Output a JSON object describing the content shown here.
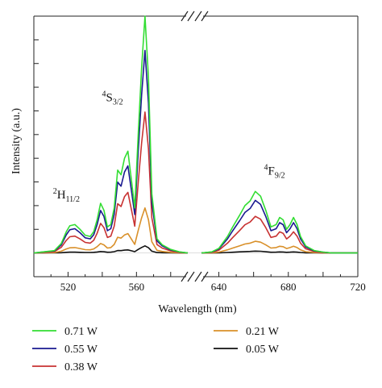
{
  "chart_data": {
    "type": "line",
    "xlabel": "Wavelength (nm)",
    "ylabel": "Intensity (a.u.)",
    "axis_break": [
      590,
      630
    ],
    "segments": [
      {
        "xlim": [
          500,
          590
        ],
        "ticks": [
          520,
          540,
          560,
          580
        ]
      },
      {
        "xlim": [
          630,
          720
        ],
        "ticks": [
          640,
          660,
          680,
          700,
          720
        ]
      }
    ],
    "ylim": [
      -0.1,
      1.0
    ],
    "grid": false,
    "legend_position": "bottom",
    "annotations": [
      {
        "base": "2",
        "sym": "H",
        "sub": "11/2",
        "x": 519,
        "y": 0.23
      },
      {
        "base": "4",
        "sym": "S",
        "sub": "3/2",
        "x": 546,
        "y": 0.64
      },
      {
        "base": "4",
        "sym": "F",
        "sub": "9/2",
        "x": 672,
        "y": 0.33
      }
    ],
    "series": [
      {
        "name": "0.71 W",
        "color": "#33dd33",
        "peak": 1.0
      },
      {
        "name": "0.55 W",
        "color": "#1a1a90",
        "peak": 0.855
      },
      {
        "name": "0.38 W",
        "color": "#c83232",
        "peak": 0.595
      },
      {
        "name": "0.21 W",
        "color": "#d9902a",
        "peak": 0.19
      },
      {
        "name": "0.05 W",
        "color": "#111111",
        "peak": 0.03
      }
    ],
    "profile": {
      "x": [
        500,
        512,
        516,
        519,
        521,
        524,
        527,
        530,
        533,
        535,
        537,
        539,
        541,
        543,
        545,
        547,
        549,
        551,
        553,
        555,
        557,
        559,
        561,
        563,
        565,
        567,
        569,
        572,
        575,
        580,
        585,
        590,
        630,
        636,
        640,
        645,
        648,
        652,
        655,
        658,
        661,
        664,
        667,
        670,
        673,
        675,
        677,
        679,
        681,
        683,
        685,
        687,
        690,
        695,
        700,
        705,
        710,
        720
      ],
      "y": [
        0,
        0.01,
        0.04,
        0.09,
        0.115,
        0.12,
        0.1,
        0.075,
        0.07,
        0.09,
        0.14,
        0.21,
        0.18,
        0.11,
        0.12,
        0.19,
        0.35,
        0.33,
        0.4,
        0.43,
        0.31,
        0.19,
        0.5,
        0.78,
        1.0,
        0.74,
        0.25,
        0.06,
        0.035,
        0.015,
        0.005,
        0,
        0,
        0.005,
        0.02,
        0.07,
        0.11,
        0.16,
        0.2,
        0.22,
        0.26,
        0.24,
        0.18,
        0.11,
        0.12,
        0.15,
        0.14,
        0.1,
        0.12,
        0.15,
        0.12,
        0.07,
        0.03,
        0.01,
        0.004,
        0,
        0,
        0
      ]
    }
  }
}
